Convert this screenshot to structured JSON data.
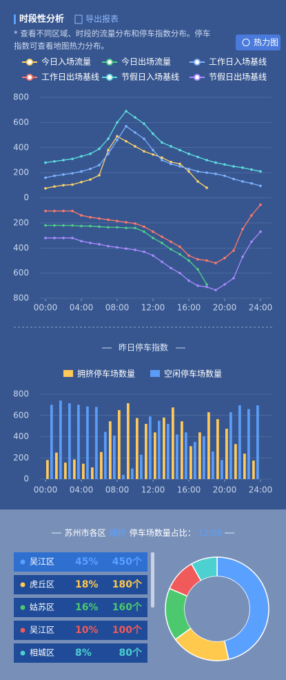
{
  "header": {
    "title": "时段性分析",
    "export": "导出报表",
    "note_lines": [
      "* 查看不同区域、时段的流量分布和停车指数分布。停车",
      "指数可查看地图热力分布。"
    ],
    "button": "热力图"
  },
  "chart_data": [
    {
      "type": "line",
      "x": [
        0,
        1,
        2,
        3,
        4,
        5,
        6,
        7,
        8,
        9,
        10,
        11,
        12,
        13,
        14,
        15,
        16,
        17,
        18,
        19,
        20,
        21,
        22,
        23,
        24
      ],
      "xlim": [
        0,
        24
      ],
      "xticks": [
        {
          "value": 0,
          "label": "00:00"
        },
        {
          "value": 4,
          "label": "04:00"
        },
        {
          "value": 8,
          "label": "08:00"
        },
        {
          "value": 12,
          "label": "12:00"
        },
        {
          "value": 16,
          "label": "16:00"
        },
        {
          "value": 20,
          "label": "20:00"
        },
        {
          "value": 24,
          "label": "24:00"
        }
      ],
      "ylim": [
        -800,
        800
      ],
      "yticks": [
        800,
        600,
        400,
        200,
        0,
        {
          "value": -200,
          "label": "200"
        },
        {
          "value": -400,
          "label": "400"
        },
        {
          "value": -600,
          "label": "600"
        },
        {
          "value": -800,
          "label": "800"
        }
      ],
      "grid": true,
      "series": [
        {
          "name": "今日入场流量",
          "color": "#ffd36b",
          "values": [
            75,
            90,
            100,
            105,
            125,
            145,
            180,
            380,
            490,
            450,
            410,
            370,
            345,
            320,
            285,
            270,
            210,
            130,
            80,
            null,
            null,
            null,
            null,
            null,
            null
          ]
        },
        {
          "name": "今日出场流量",
          "color": "#4fd08a",
          "values": [
            -220,
            -220,
            -220,
            -220,
            -225,
            -225,
            -230,
            -235,
            -235,
            -240,
            -240,
            -270,
            -320,
            -360,
            -410,
            -450,
            -500,
            -570,
            -690,
            null,
            null,
            null,
            null,
            null,
            null
          ]
        },
        {
          "name": "工作日入场基线",
          "color": "#7fb2ff",
          "values": [
            160,
            175,
            185,
            195,
            210,
            230,
            260,
            350,
            460,
            570,
            520,
            470,
            380,
            300,
            270,
            250,
            230,
            210,
            200,
            190,
            175,
            150,
            130,
            115,
            95
          ]
        },
        {
          "name": "工作日出场基线",
          "color": "#ff7a6b",
          "values": [
            -105,
            -105,
            -105,
            -105,
            -140,
            -155,
            -165,
            -175,
            -185,
            -195,
            -205,
            -230,
            -270,
            -310,
            -350,
            -390,
            -460,
            -490,
            -500,
            -520,
            -480,
            -420,
            -250,
            -140,
            -55
          ]
        },
        {
          "name": "节假日入场基线",
          "color": "#5fe0e0",
          "values": [
            280,
            290,
            300,
            310,
            330,
            350,
            390,
            470,
            600,
            690,
            640,
            590,
            510,
            440,
            410,
            380,
            350,
            325,
            300,
            280,
            265,
            250,
            240,
            225,
            210
          ]
        },
        {
          "name": "节假日出场基线",
          "color": "#a98bff",
          "values": [
            -320,
            -320,
            -320,
            -320,
            -345,
            -360,
            -370,
            -385,
            -395,
            -405,
            -415,
            -430,
            -460,
            -510,
            -560,
            -600,
            -660,
            -700,
            -710,
            -735,
            -690,
            -640,
            -470,
            -350,
            -270
          ]
        }
      ]
    },
    {
      "type": "bar",
      "title": "昨日停车指数",
      "x": [
        0,
        1,
        2,
        3,
        4,
        5,
        6,
        7,
        8,
        9,
        10,
        11,
        12,
        13,
        14,
        15,
        16,
        17,
        18,
        19,
        20,
        21,
        22,
        23
      ],
      "xlim": [
        0,
        24
      ],
      "xticks": [
        {
          "value": 0,
          "label": "00:00"
        },
        {
          "value": 4,
          "label": "04:00"
        },
        {
          "value": 8,
          "label": "08:00"
        },
        {
          "value": 12,
          "label": "12:00"
        },
        {
          "value": 16,
          "label": "16:00"
        },
        {
          "value": 20,
          "label": "20:00"
        },
        {
          "value": 24,
          "label": "24:00"
        }
      ],
      "ylim": [
        0,
        800
      ],
      "yticks": [
        0,
        200,
        400,
        600,
        800
      ],
      "grid": true,
      "series": [
        {
          "name": "拥挤停车场数量",
          "color": "#ffc95a",
          "values": [
            180,
            250,
            155,
            185,
            145,
            110,
            255,
            545,
            650,
            715,
            575,
            520,
            440,
            580,
            675,
            545,
            310,
            440,
            630,
            565,
            475,
            330,
            240,
            175
          ]
        },
        {
          "name": "空闲停车场数量",
          "color": "#5b9cf6",
          "values": [
            700,
            740,
            715,
            700,
            685,
            680,
            445,
            410,
            40,
            100,
            230,
            590,
            550,
            520,
            420,
            440,
            350,
            405,
            260,
            180,
            630,
            695,
            660,
            695
          ]
        }
      ]
    },
    {
      "type": "donut",
      "title_prefix": "苏州市各区",
      "title_highlight": "拥挤",
      "title_suffix": "停车场数量占比：",
      "time": "12:00",
      "categories": [
        "吴江区",
        "虎丘区",
        "姑苏区",
        "吴江区",
        "相城区"
      ],
      "colors": [
        "#5aa0ff",
        "#ffc94d",
        "#4cc96e",
        "#f05a5a",
        "#4dd0d0"
      ],
      "values": [
        45,
        18,
        16,
        10,
        8
      ],
      "value_labels": [
        "45%",
        "18%",
        "16%",
        "10%",
        "8%"
      ],
      "counts": [
        450,
        180,
        160,
        100,
        80
      ],
      "count_labels": [
        "450个",
        "180个",
        "160个",
        "100个",
        "80个"
      ]
    }
  ]
}
